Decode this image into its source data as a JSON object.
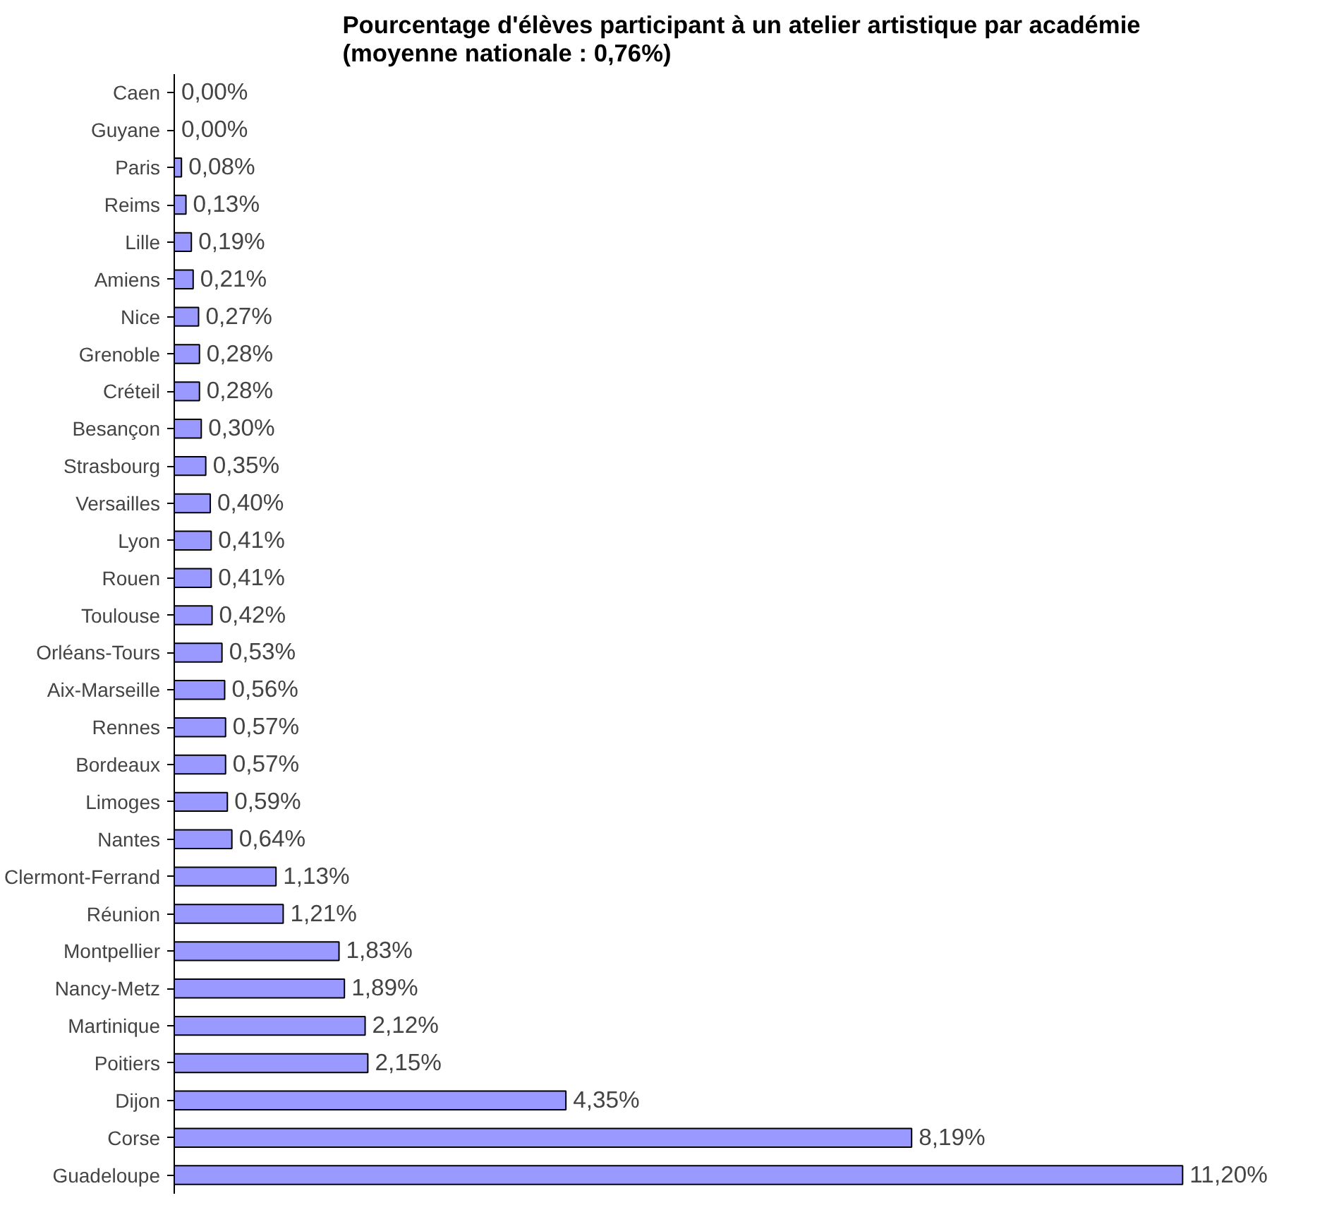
{
  "chart_data": {
    "type": "bar",
    "orientation": "horizontal",
    "title": "Pourcentage d'élèves participant à un atelier artistique par académie\n(moyenne nationale : 0,76%)",
    "categories": [
      "Caen",
      "Guyane",
      "Paris",
      "Reims",
      "Lille",
      "Amiens",
      "Nice",
      "Grenoble",
      "Créteil",
      "Besançon",
      "Strasbourg",
      "Versailles",
      "Lyon",
      "Rouen",
      "Toulouse",
      "Orléans-Tours",
      "Aix-Marseille",
      "Rennes",
      "Bordeaux",
      "Limoges",
      "Nantes",
      "Clermont-Ferrand",
      "Réunion",
      "Montpellier",
      "Nancy-Metz",
      "Martinique",
      "Poitiers",
      "Dijon",
      "Corse",
      "Guadeloupe"
    ],
    "values": [
      0.0,
      0.0,
      0.08,
      0.13,
      0.19,
      0.21,
      0.27,
      0.28,
      0.28,
      0.3,
      0.35,
      0.4,
      0.41,
      0.41,
      0.42,
      0.53,
      0.56,
      0.57,
      0.57,
      0.59,
      0.64,
      1.13,
      1.21,
      1.83,
      1.89,
      2.12,
      2.15,
      4.35,
      8.19,
      11.2
    ],
    "value_labels": [
      "0,00%",
      "0,00%",
      "0,08%",
      "0,13%",
      "0,19%",
      "0,21%",
      "0,27%",
      "0,28%",
      "0,28%",
      "0,30%",
      "0,35%",
      "0,40%",
      "0,41%",
      "0,41%",
      "0,42%",
      "0,53%",
      "0,56%",
      "0,57%",
      "0,57%",
      "0,59%",
      "0,64%",
      "1,13%",
      "1,21%",
      "1,83%",
      "1,89%",
      "2,12%",
      "2,15%",
      "4,35%",
      "8,19%",
      "11,20%"
    ],
    "color": "#9999ff",
    "tick_labels": "y",
    "grid": false
  }
}
